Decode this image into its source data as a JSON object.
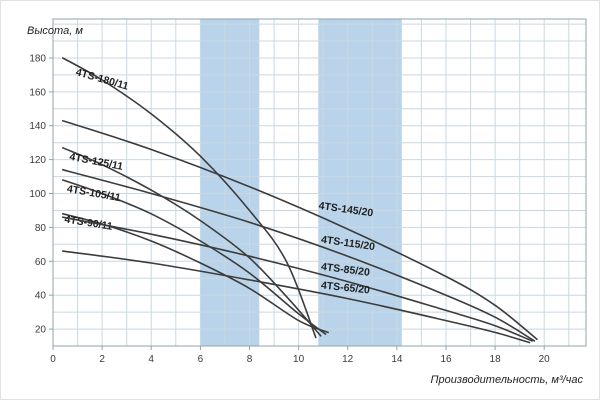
{
  "chart_data": {
    "type": "line",
    "title": "",
    "xlabel": "Производительность, м³/час",
    "ylabel": "Высота, м",
    "xlim": [
      0,
      21.7
    ],
    "ylim": [
      10,
      203
    ],
    "x_ticks": [
      0,
      2,
      4,
      6,
      8,
      10,
      12,
      14,
      16,
      18,
      20
    ],
    "y_ticks": [
      20,
      40,
      60,
      80,
      100,
      120,
      140,
      160,
      180
    ],
    "grid": {
      "show": true,
      "x_step": 1,
      "y_step": 10
    },
    "legend": "none",
    "band_color": "#b9d4ea",
    "curve_color": "#3c3c3c",
    "bands": [
      {
        "x0": 6.0,
        "x1": 8.4
      },
      {
        "x0": 10.8,
        "x1": 14.2
      }
    ],
    "series": [
      {
        "name": "4TS-180/11",
        "label_pos": [
          0.9,
          170
        ],
        "label_angle": 16,
        "points": [
          [
            0.4,
            180
          ],
          [
            2,
            167
          ],
          [
            4,
            147
          ],
          [
            6,
            122
          ],
          [
            8,
            90
          ],
          [
            9.5,
            60
          ],
          [
            10.7,
            15
          ]
        ]
      },
      {
        "name": "4TS-125/11",
        "label_pos": [
          0.65,
          120
        ],
        "label_angle": 11,
        "points": [
          [
            0.4,
            127
          ],
          [
            2,
            117
          ],
          [
            4,
            102
          ],
          [
            6,
            84
          ],
          [
            8,
            62
          ],
          [
            9.7,
            36
          ],
          [
            10.9,
            16
          ]
        ]
      },
      {
        "name": "4TS-105/11",
        "label_pos": [
          0.55,
          101
        ],
        "label_angle": 10,
        "points": [
          [
            0.4,
            108
          ],
          [
            2,
            100
          ],
          [
            4,
            88
          ],
          [
            6,
            72
          ],
          [
            8,
            53
          ],
          [
            10,
            29
          ],
          [
            11.1,
            17
          ]
        ]
      },
      {
        "name": "4TS-90/11",
        "label_pos": [
          0.45,
          83
        ],
        "label_angle": 9,
        "points": [
          [
            0.4,
            88
          ],
          [
            2,
            82
          ],
          [
            4,
            72
          ],
          [
            6,
            59
          ],
          [
            8,
            44
          ],
          [
            10,
            25
          ],
          [
            11.2,
            18
          ]
        ]
      },
      {
        "name": "4TS-145/20",
        "label_pos": [
          10.8,
          91
        ],
        "label_angle": 8,
        "points": [
          [
            0.4,
            143
          ],
          [
            4,
            126
          ],
          [
            8,
            104
          ],
          [
            12,
            79
          ],
          [
            16,
            51
          ],
          [
            18,
            34
          ],
          [
            19.7,
            14
          ]
        ]
      },
      {
        "name": "4TS-115/20",
        "label_pos": [
          10.9,
          71
        ],
        "label_angle": 8,
        "points": [
          [
            0.4,
            114
          ],
          [
            4,
            100
          ],
          [
            8,
            83
          ],
          [
            12,
            63
          ],
          [
            16,
            40
          ],
          [
            18,
            27
          ],
          [
            19.6,
            13
          ]
        ]
      },
      {
        "name": "4TS-85/20",
        "label_pos": [
          10.9,
          55
        ],
        "label_angle": 7,
        "points": [
          [
            0.4,
            86
          ],
          [
            4,
            76
          ],
          [
            8,
            63
          ],
          [
            12,
            48
          ],
          [
            16,
            31
          ],
          [
            18,
            22
          ],
          [
            19.5,
            13
          ]
        ]
      },
      {
        "name": "4TS-65/20",
        "label_pos": [
          10.9,
          44
        ],
        "label_angle": 6,
        "points": [
          [
            0.4,
            66
          ],
          [
            4,
            59
          ],
          [
            8,
            49
          ],
          [
            12,
            38
          ],
          [
            16,
            25
          ],
          [
            18,
            18
          ],
          [
            19.4,
            12
          ]
        ]
      }
    ]
  }
}
